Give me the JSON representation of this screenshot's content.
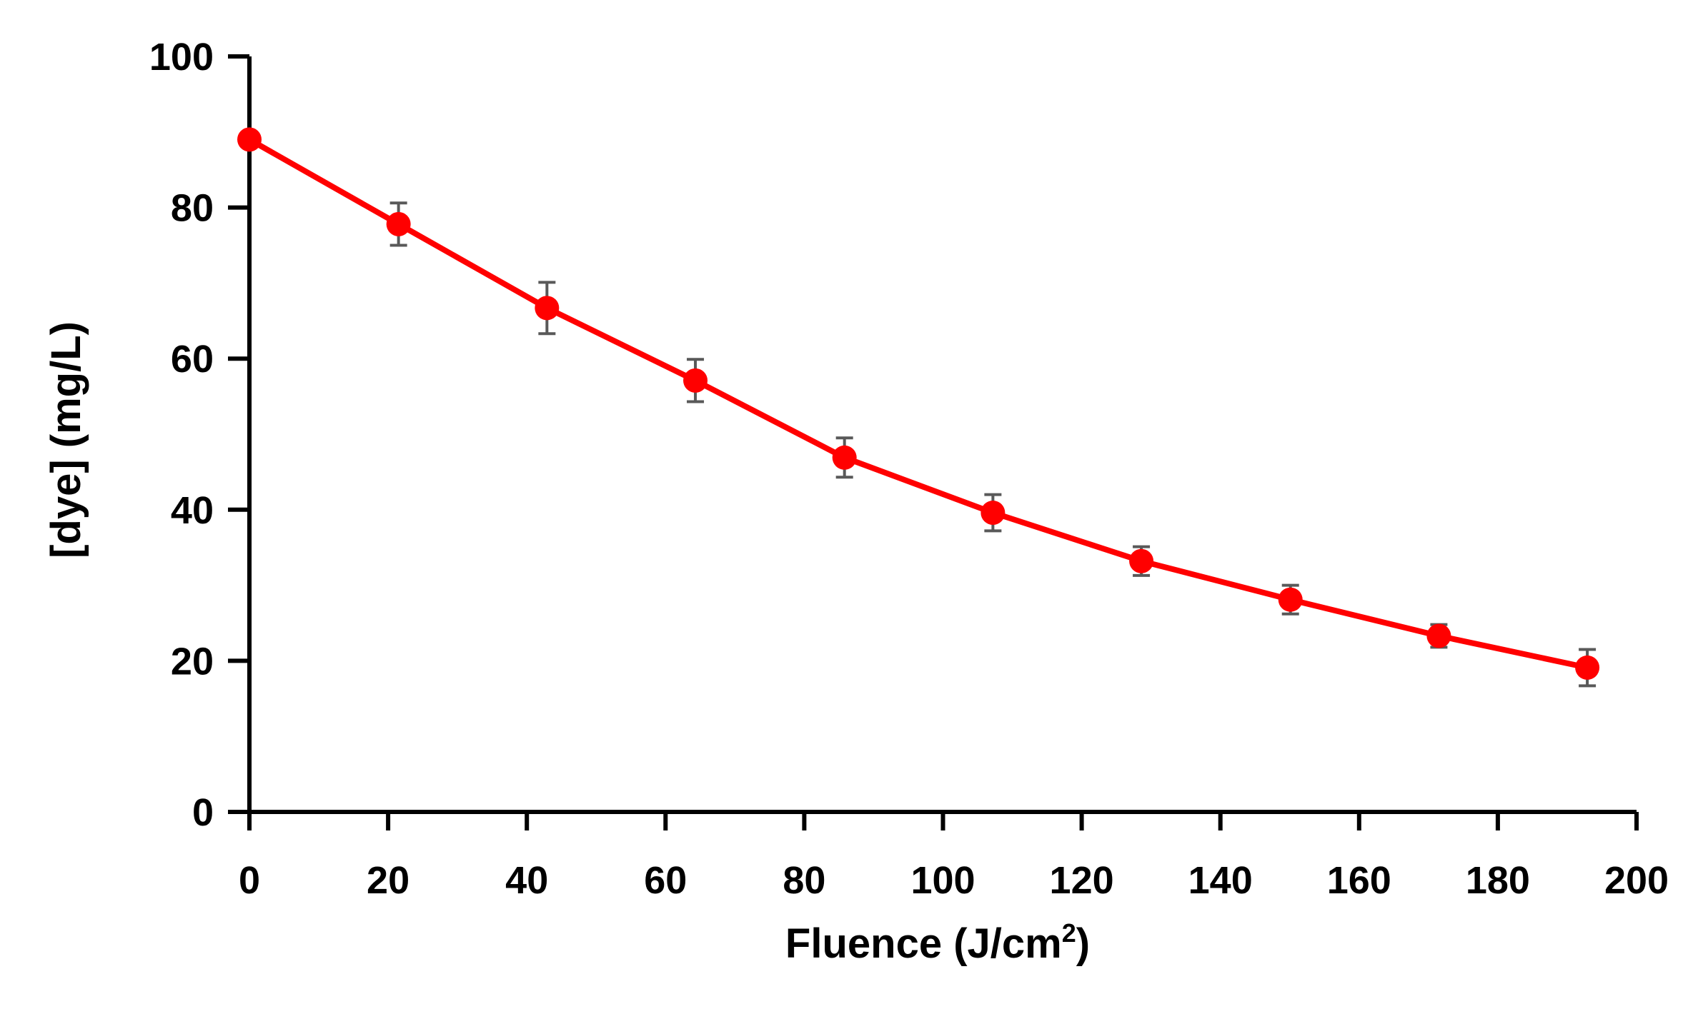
{
  "chart_data": {
    "type": "line",
    "title": "",
    "xlabel": "Fluence (J/cm",
    "xlabel_superscript": "2",
    "xlabel_suffix": ")",
    "ylabel": "[dye] (mg/L)",
    "xlim": [
      0,
      200
    ],
    "ylim": [
      0,
      100
    ],
    "x_ticks": [
      0,
      20,
      40,
      60,
      80,
      100,
      120,
      140,
      160,
      180,
      200
    ],
    "y_ticks": [
      0,
      20,
      40,
      60,
      80,
      100
    ],
    "grid": false,
    "legend": "none",
    "series": [
      {
        "color": "#ff0000",
        "error_bar_color": "#595959",
        "points": [
          {
            "x": 0,
            "y": 89.0,
            "err": 0.0
          },
          {
            "x": 21.5,
            "y": 77.8,
            "err": 2.8
          },
          {
            "x": 42.9,
            "y": 66.7,
            "err": 3.4
          },
          {
            "x": 64.3,
            "y": 57.1,
            "err": 2.8
          },
          {
            "x": 85.8,
            "y": 46.9,
            "err": 2.6
          },
          {
            "x": 107.2,
            "y": 39.6,
            "err": 2.4
          },
          {
            "x": 128.6,
            "y": 33.2,
            "err": 1.9
          },
          {
            "x": 150.1,
            "y": 28.1,
            "err": 1.9
          },
          {
            "x": 171.5,
            "y": 23.3,
            "err": 1.5
          },
          {
            "x": 192.9,
            "y": 19.1,
            "err": 2.4
          }
        ]
      }
    ]
  }
}
